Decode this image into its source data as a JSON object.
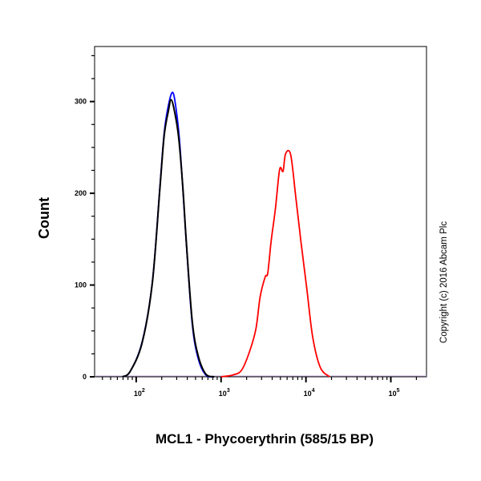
{
  "chart_data": {
    "type": "line",
    "title": "",
    "xlabel": "MCL1 - Phycoerythrin (585/15 BP)",
    "ylabel": "Count",
    "x_scale": "log",
    "xlim_log10": [
      1.51,
      5.42
    ],
    "ylim": [
      0,
      360
    ],
    "x_ticks": [
      {
        "base": "10",
        "exp": "2",
        "value": 100
      },
      {
        "base": "10",
        "exp": "3",
        "value": 1000
      },
      {
        "base": "10",
        "exp": "4",
        "value": 10000
      },
      {
        "base": "10",
        "exp": "5",
        "value": 100000
      }
    ],
    "y_ticks": [
      "0",
      "100",
      "200",
      "300"
    ],
    "grid": false,
    "series": [
      {
        "color": "#0000ff",
        "points_log10x": [
          [
            1.84,
            0
          ],
          [
            1.93,
            6
          ],
          [
            2.07,
            38
          ],
          [
            2.19,
            103
          ],
          [
            2.28,
            208
          ],
          [
            2.33,
            266
          ],
          [
            2.38,
            296
          ],
          [
            2.43,
            310
          ],
          [
            2.47,
            292
          ],
          [
            2.51,
            258
          ],
          [
            2.55,
            204
          ],
          [
            2.59,
            146
          ],
          [
            2.66,
            58
          ],
          [
            2.73,
            20
          ],
          [
            2.82,
            2
          ],
          [
            2.92,
            0
          ]
        ]
      },
      {
        "color": "#000000",
        "points_log10x": [
          [
            1.84,
            0
          ],
          [
            1.93,
            6
          ],
          [
            2.07,
            37
          ],
          [
            2.19,
            102
          ],
          [
            2.28,
            206
          ],
          [
            2.33,
            263
          ],
          [
            2.38,
            290
          ],
          [
            2.41,
            302
          ],
          [
            2.45,
            290
          ],
          [
            2.5,
            261
          ],
          [
            2.55,
            206
          ],
          [
            2.59,
            148
          ],
          [
            2.66,
            61
          ],
          [
            2.73,
            23
          ],
          [
            2.82,
            3
          ],
          [
            2.92,
            0
          ]
        ]
      },
      {
        "color": "#ff0000",
        "points_log10x": [
          [
            3.0,
            0
          ],
          [
            3.14,
            2
          ],
          [
            3.24,
            7
          ],
          [
            3.33,
            26
          ],
          [
            3.41,
            52
          ],
          [
            3.46,
            87
          ],
          [
            3.52,
            109
          ],
          [
            3.55,
            113
          ],
          [
            3.59,
            148
          ],
          [
            3.64,
            183
          ],
          [
            3.69,
            226
          ],
          [
            3.73,
            224
          ],
          [
            3.76,
            243
          ],
          [
            3.82,
            242
          ],
          [
            3.88,
            196
          ],
          [
            3.94,
            148
          ],
          [
            4.01,
            96
          ],
          [
            4.08,
            43
          ],
          [
            4.17,
            10
          ],
          [
            4.28,
            0
          ]
        ]
      }
    ]
  },
  "copyright": "Copyright (c) 2016 Abcam Plc"
}
